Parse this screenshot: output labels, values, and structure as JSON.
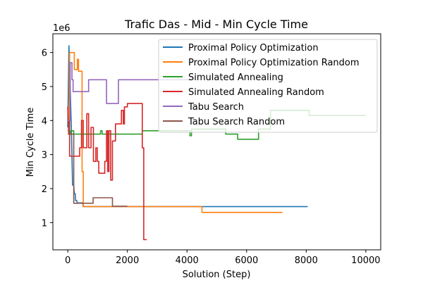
{
  "chart_data": {
    "type": "line",
    "title": "Trafic Das - Mid - Min Cycle Time",
    "xlabel": "Solution (Step)",
    "ylabel": "Min Cycle Time",
    "y_offset_label": "1e6",
    "xlim": [
      -500,
      10500
    ],
    "ylim": [
      0.2,
      6.55
    ],
    "x_ticks": [
      0,
      2000,
      4000,
      6000,
      8000,
      10000
    ],
    "x_tick_labels": [
      "0",
      "2000",
      "4000",
      "6000",
      "8000",
      "10000"
    ],
    "y_ticks": [
      1,
      2,
      3,
      4,
      5,
      6
    ],
    "y_tick_labels": [
      "1",
      "2",
      "3",
      "4",
      "5",
      "6"
    ],
    "legend_position": "upper-right",
    "series": [
      {
        "name": "Proximal Policy Optimization",
        "color": "#1f77b4",
        "points": [
          [
            0,
            3.8
          ],
          [
            40,
            6.2
          ],
          [
            80,
            5.0
          ],
          [
            120,
            3.8
          ],
          [
            160,
            2.1
          ],
          [
            200,
            2.1
          ],
          [
            220,
            1.85
          ],
          [
            250,
            1.85
          ],
          [
            260,
            1.65
          ],
          [
            300,
            1.65
          ],
          [
            320,
            1.58
          ],
          [
            500,
            1.58
          ],
          [
            520,
            1.47
          ],
          [
            8050,
            1.47
          ]
        ]
      },
      {
        "name": "Proximal Policy Optimization Random",
        "color": "#ff7f0e",
        "points": [
          [
            0,
            3.7
          ],
          [
            40,
            3.7
          ],
          [
            60,
            6.0
          ],
          [
            220,
            6.0
          ],
          [
            220,
            5.5
          ],
          [
            320,
            5.5
          ],
          [
            320,
            5.8
          ],
          [
            360,
            5.8
          ],
          [
            360,
            5.45
          ],
          [
            480,
            5.45
          ],
          [
            480,
            2.5
          ],
          [
            520,
            2.5
          ],
          [
            520,
            1.47
          ],
          [
            4500,
            1.47
          ],
          [
            4500,
            1.3
          ],
          [
            7200,
            1.3
          ]
        ]
      },
      {
        "name": "Simulated Annealing",
        "color": "#2ca02c",
        "points": [
          [
            0,
            3.6
          ],
          [
            100,
            3.6
          ],
          [
            100,
            3.7
          ],
          [
            200,
            3.7
          ],
          [
            200,
            3.6
          ],
          [
            1100,
            3.6
          ],
          [
            1100,
            3.7
          ],
          [
            1150,
            3.7
          ],
          [
            1150,
            3.6
          ],
          [
            2500,
            3.6
          ],
          [
            2500,
            3.7
          ],
          [
            4100,
            3.7
          ],
          [
            4100,
            3.55
          ],
          [
            4150,
            3.55
          ],
          [
            4150,
            3.75
          ],
          [
            5300,
            3.75
          ],
          [
            5300,
            3.6
          ],
          [
            5700,
            3.6
          ],
          [
            5700,
            3.45
          ],
          [
            6400,
            3.45
          ],
          [
            6400,
            3.75
          ],
          [
            6800,
            3.75
          ],
          [
            6800,
            4.3
          ],
          [
            8100,
            4.3
          ],
          [
            8100,
            4.15
          ],
          [
            10000,
            4.15
          ]
        ]
      },
      {
        "name": "Simulated Annealing Random",
        "color": "#d62728",
        "points": [
          [
            0,
            4.4
          ],
          [
            30,
            3.6
          ],
          [
            60,
            4.0
          ],
          [
            60,
            2.95
          ],
          [
            400,
            2.95
          ],
          [
            400,
            3.2
          ],
          [
            460,
            3.2
          ],
          [
            460,
            4.0
          ],
          [
            520,
            4.0
          ],
          [
            520,
            3.2
          ],
          [
            640,
            3.2
          ],
          [
            640,
            4.2
          ],
          [
            700,
            4.2
          ],
          [
            700,
            3.2
          ],
          [
            780,
            3.2
          ],
          [
            780,
            3.8
          ],
          [
            860,
            3.8
          ],
          [
            860,
            2.8
          ],
          [
            940,
            2.8
          ],
          [
            940,
            3.2
          ],
          [
            990,
            3.2
          ],
          [
            990,
            2.8
          ],
          [
            1040,
            2.8
          ],
          [
            1040,
            2.45
          ],
          [
            1240,
            2.45
          ],
          [
            1240,
            2.8
          ],
          [
            1300,
            2.8
          ],
          [
            1300,
            3.7
          ],
          [
            1340,
            3.7
          ],
          [
            1340,
            2.5
          ],
          [
            1380,
            2.5
          ],
          [
            1380,
            3.7
          ],
          [
            1440,
            3.7
          ],
          [
            1440,
            2.25
          ],
          [
            1500,
            2.25
          ],
          [
            1500,
            3.4
          ],
          [
            1600,
            3.4
          ],
          [
            1600,
            3.9
          ],
          [
            1800,
            3.9
          ],
          [
            1800,
            4.3
          ],
          [
            1860,
            4.3
          ],
          [
            1860,
            3.9
          ],
          [
            1900,
            3.9
          ],
          [
            1900,
            4.4
          ],
          [
            2000,
            4.4
          ],
          [
            2000,
            4.5
          ],
          [
            2500,
            4.5
          ],
          [
            2500,
            3.2
          ],
          [
            2550,
            3.2
          ],
          [
            2550,
            0.5
          ],
          [
            2650,
            0.5
          ]
        ]
      },
      {
        "name": "Tabu Search",
        "color": "#9467bd",
        "points": [
          [
            0,
            4.0
          ],
          [
            80,
            4.0
          ],
          [
            80,
            5.7
          ],
          [
            140,
            5.7
          ],
          [
            140,
            5.2
          ],
          [
            180,
            5.2
          ],
          [
            180,
            4.85
          ],
          [
            700,
            4.85
          ],
          [
            700,
            5.2
          ],
          [
            1300,
            5.2
          ],
          [
            1300,
            4.5
          ],
          [
            1700,
            4.5
          ],
          [
            1700,
            5.2
          ],
          [
            4200,
            5.2
          ]
        ]
      },
      {
        "name": "Tabu Search Random",
        "color": "#8c564b",
        "points": [
          [
            0,
            3.9
          ],
          [
            40,
            3.9
          ],
          [
            40,
            3.6
          ],
          [
            200,
            3.6
          ],
          [
            200,
            1.57
          ],
          [
            850,
            1.57
          ],
          [
            850,
            1.73
          ],
          [
            1500,
            1.73
          ],
          [
            1500,
            1.48
          ],
          [
            2000,
            1.48
          ]
        ]
      }
    ]
  }
}
